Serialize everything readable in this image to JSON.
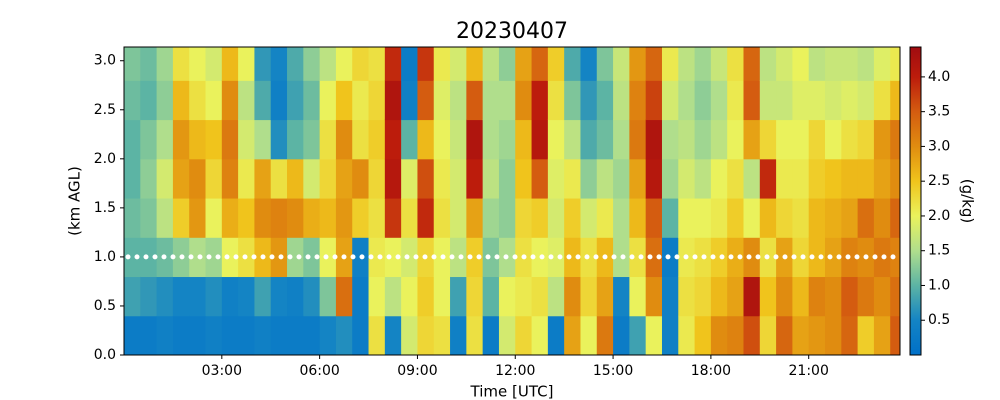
{
  "chart_data": {
    "type": "heatmap",
    "title": "20230407",
    "xlabel": "Time [UTC]",
    "ylabel": "(km AGL)",
    "colorbar_label": "(g/kg)",
    "xlim": [
      0,
      23.8
    ],
    "ylim": [
      0,
      3.14
    ],
    "clim": [
      0,
      4.43
    ],
    "xticks": [
      {
        "value": 3,
        "label": "03:00"
      },
      {
        "value": 6,
        "label": "06:00"
      },
      {
        "value": 9,
        "label": "09:00"
      },
      {
        "value": 12,
        "label": "12:00"
      },
      {
        "value": 15,
        "label": "15:00"
      },
      {
        "value": 18,
        "label": "18:00"
      },
      {
        "value": 21,
        "label": "21:00"
      }
    ],
    "yticks": [
      {
        "value": 0,
        "label": "0.0"
      },
      0.5,
      {
        "value": 1,
        "label": "1.0"
      },
      1.5,
      {
        "value": 2,
        "label": "2.0"
      },
      2.5,
      {
        "value": 3,
        "label": "3.0"
      }
    ],
    "cticks": [
      0.5,
      {
        "value": 1,
        "label": "1.0"
      },
      1.5,
      {
        "value": 2,
        "label": "2.0"
      },
      2.5,
      {
        "value": 3,
        "label": "3.0"
      },
      3.5,
      {
        "value": 4,
        "label": "4.0"
      }
    ],
    "colormap": [
      {
        "value": 0,
        "color": "#0070c8"
      },
      {
        "value": 0.5,
        "color": "#1484c4"
      },
      {
        "value": 1.0,
        "color": "#5cb4a4"
      },
      {
        "value": 1.5,
        "color": "#b0de8c"
      },
      {
        "value": 2.0,
        "color": "#eaf25c"
      },
      {
        "value": 2.5,
        "color": "#f0c41c"
      },
      {
        "value": 3.0,
        "color": "#e08c10"
      },
      {
        "value": 3.5,
        "color": "#d45c10"
      },
      {
        "value": 4.0,
        "color": "#bc1c0c"
      },
      {
        "value": 4.43,
        "color": "#a00c10"
      }
    ],
    "hline": {
      "y": 1,
      "color": "#ffffff"
    },
    "x_bins": [
      0,
      0.5,
      1,
      1.5,
      2,
      2.5,
      3,
      3.5,
      4,
      4.5,
      5,
      5.5,
      6,
      6.5,
      7,
      7.5,
      8,
      8.5,
      9,
      9.5,
      10,
      10.5,
      11,
      11.5,
      12,
      12.5,
      13,
      13.5,
      14,
      14.5,
      15,
      15.5,
      16,
      16.5,
      17,
      17.5,
      18,
      18.5,
      19,
      19.5,
      20,
      20.5,
      21,
      21.5,
      22,
      22.5,
      23,
      23.5,
      23.8
    ],
    "y_bins": [
      0,
      0.4,
      0.8,
      1.2,
      1.6,
      2.0,
      2.4,
      2.8,
      3.14
    ],
    "values": [
      [
        0.3,
        0.8,
        1.0,
        1.1,
        1.0,
        1.0,
        1.1,
        1.2
      ],
      [
        0.3,
        0.7,
        1.0,
        1.2,
        1.3,
        1.2,
        1.0,
        1.1
      ],
      [
        0.4,
        0.6,
        1.1,
        1.6,
        1.8,
        1.5,
        1.3,
        1.4
      ],
      [
        0.3,
        0.5,
        1.3,
        2.4,
        2.8,
        2.9,
        2.6,
        2.2
      ],
      [
        0.3,
        0.5,
        1.5,
        2.9,
        3.0,
        2.6,
        2.2,
        2.0
      ],
      [
        0.4,
        0.6,
        1.4,
        2.0,
        2.3,
        2.5,
        2.0,
        1.8
      ],
      [
        0.3,
        0.4,
        2.0,
        2.7,
        3.1,
        3.2,
        3.0,
        2.6
      ],
      [
        0.3,
        0.5,
        2.2,
        2.5,
        2.1,
        1.8,
        1.6,
        2.0
      ],
      [
        0.4,
        0.8,
        2.6,
        3.0,
        2.8,
        1.5,
        0.9,
        0.7
      ],
      [
        0.3,
        0.5,
        2.9,
        3.1,
        2.2,
        0.6,
        0.4,
        0.5
      ],
      [
        0.3,
        0.4,
        1.4,
        3.0,
        2.6,
        1.0,
        0.8,
        0.9
      ],
      [
        0.3,
        0.6,
        1.2,
        2.7,
        1.8,
        1.2,
        1.1,
        1.3
      ],
      [
        0.5,
        1.2,
        2.0,
        2.6,
        2.3,
        2.2,
        2.0,
        1.6
      ],
      [
        0.6,
        3.3,
        2.8,
        2.9,
        2.8,
        3.0,
        2.5,
        2.0
      ],
      [
        0.3,
        0.3,
        0.4,
        2.4,
        3.0,
        2.2,
        2.1,
        2.3
      ],
      [
        2.2,
        2.0,
        2.1,
        2.2,
        2.3,
        2.4,
        2.3,
        2.2
      ],
      [
        0.5,
        1.6,
        2.0,
        3.8,
        4.1,
        4.0,
        4.2,
        3.9
      ],
      [
        1.8,
        2.0,
        1.8,
        2.2,
        1.9,
        1.0,
        0.4,
        0.3
      ],
      [
        2.3,
        2.4,
        2.3,
        3.9,
        3.6,
        2.6,
        3.5,
        3.8
      ],
      [
        2.2,
        2.0,
        2.0,
        2.2,
        2.1,
        2.0,
        1.9,
        2.1
      ],
      [
        0.4,
        0.8,
        1.6,
        1.8,
        1.8,
        1.7,
        1.6,
        1.8
      ],
      [
        2.2,
        2.3,
        2.4,
        2.8,
        4.0,
        4.2,
        3.5,
        2.6
      ],
      [
        0.3,
        1.0,
        1.2,
        1.4,
        1.6,
        1.5,
        1.5,
        1.6
      ],
      [
        1.8,
        2.0,
        1.5,
        1.3,
        1.3,
        1.4,
        1.5,
        1.3
      ],
      [
        2.3,
        2.1,
        2.2,
        2.3,
        2.5,
        2.6,
        3.0,
        2.8
      ],
      [
        2.0,
        2.2,
        2.0,
        2.4,
        3.5,
        4.1,
        4.0,
        3.4
      ],
      [
        0.3,
        1.6,
        1.9,
        1.8,
        1.9,
        2.0,
        2.2,
        2.4
      ],
      [
        2.8,
        3.0,
        2.6,
        2.4,
        2.1,
        1.6,
        1.2,
        0.9
      ],
      [
        2.0,
        2.3,
        2.2,
        1.8,
        1.3,
        0.9,
        0.7,
        0.5
      ],
      [
        3.2,
        2.8,
        2.6,
        2.1,
        1.6,
        1.1,
        1.0,
        1.2
      ],
      [
        0.3,
        0.5,
        1.5,
        1.5,
        1.4,
        1.5,
        1.6,
        1.7
      ],
      [
        0.8,
        2.0,
        2.2,
        2.6,
        2.8,
        3.2,
        3.1,
        2.9
      ],
      [
        2.0,
        3.0,
        3.3,
        3.5,
        4.1,
        4.2,
        3.7,
        3.4
      ],
      [
        0.4,
        0.4,
        0.3,
        1.0,
        1.4,
        1.5,
        1.8,
        2.1
      ],
      [
        2.1,
        2.2,
        2.1,
        2.0,
        1.8,
        1.6,
        1.5,
        1.6
      ],
      [
        2.5,
        2.3,
        2.2,
        2.0,
        1.6,
        1.4,
        1.3,
        1.4
      ],
      [
        3.0,
        2.6,
        2.4,
        2.1,
        2.0,
        1.6,
        1.5,
        1.7
      ],
      [
        3.1,
        2.8,
        2.7,
        2.4,
        2.2,
        2.0,
        2.1,
        2.2
      ],
      [
        3.6,
        4.2,
        3.0,
        2.0,
        1.6,
        2.8,
        3.5,
        3.4
      ],
      [
        2.3,
        2.5,
        2.2,
        2.6,
        3.9,
        2.3,
        1.7,
        1.6
      ],
      [
        3.4,
        3.0,
        2.8,
        2.3,
        2.1,
        2.0,
        1.7,
        1.8
      ],
      [
        2.8,
        2.6,
        2.3,
        2.2,
        2.1,
        2.0,
        1.9,
        2.0
      ],
      [
        2.9,
        3.1,
        2.6,
        2.6,
        2.4,
        2.3,
        1.9,
        1.6
      ],
      [
        3.0,
        3.0,
        2.8,
        2.7,
        2.5,
        2.0,
        1.8,
        1.7
      ],
      [
        3.4,
        3.5,
        3.1,
        2.8,
        2.6,
        2.2,
        1.9,
        1.7
      ],
      [
        2.4,
        3.2,
        3.0,
        3.3,
        2.6,
        2.3,
        1.8,
        1.6
      ],
      [
        2.8,
        3.0,
        3.2,
        3.0,
        2.8,
        2.9,
        2.2,
        1.9
      ],
      [
        3.5,
        3.3,
        3.1,
        3.4,
        3.0,
        3.2,
        2.6,
        2.1
      ]
    ]
  }
}
